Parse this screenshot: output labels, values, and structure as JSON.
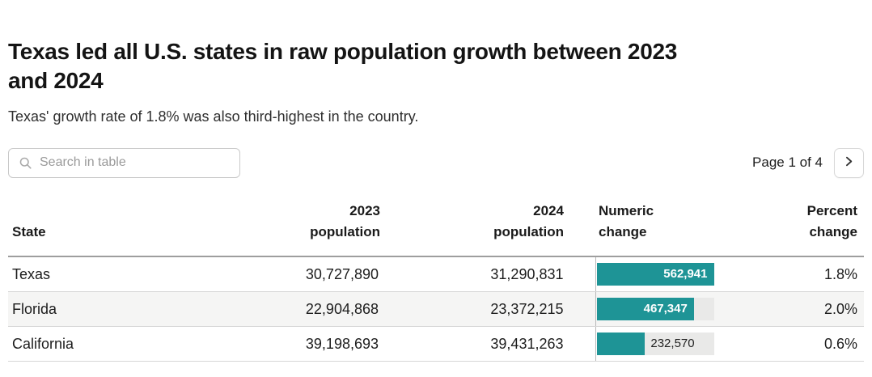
{
  "chart_data": {
    "type": "table",
    "title": "Texas led all U.S. states in raw population growth between 2023\nand 2024",
    "subtitle": "Texas' growth rate of 1.8% was also third-highest in the country.",
    "columns": [
      {
        "label": "State",
        "align": "left"
      },
      {
        "label": "2023\npopulation",
        "align": "right"
      },
      {
        "label": "2024\npopulation",
        "align": "right"
      },
      {
        "label": "Numeric\nchange",
        "align": "left"
      },
      {
        "label": "Percent\nchange",
        "align": "right"
      }
    ],
    "rows": [
      {
        "state": "Texas",
        "pop_2023": "30,727,890",
        "pop_2024": "31,290,831",
        "numeric_change": "562,941",
        "numeric_change_value": 562941,
        "percent_change": "1.8%"
      },
      {
        "state": "Florida",
        "pop_2023": "22,904,868",
        "pop_2024": "23,372,215",
        "numeric_change": "467,347",
        "numeric_change_value": 467347,
        "percent_change": "2.0%"
      },
      {
        "state": "California",
        "pop_2023": "39,198,693",
        "pop_2024": "39,431,263",
        "numeric_change": "232,570",
        "numeric_change_value": 232570,
        "percent_change": "0.6%"
      }
    ],
    "bar_column": {
      "field": "numeric_change",
      "max_value": 562941,
      "label_inside_threshold_pct": 60
    },
    "layout_hints": {
      "zebra_striping": true,
      "bar_column_divider": true
    }
  },
  "toolbar": {
    "search_placeholder": "Search in table",
    "pagination_label": "Page 1 of 4"
  },
  "colors": {
    "bar_fill": "#1e9496",
    "bar_track": "#e9e9e8",
    "zebra_row": "#f5f5f4",
    "bar_label_on_fill": "#ffffff"
  }
}
